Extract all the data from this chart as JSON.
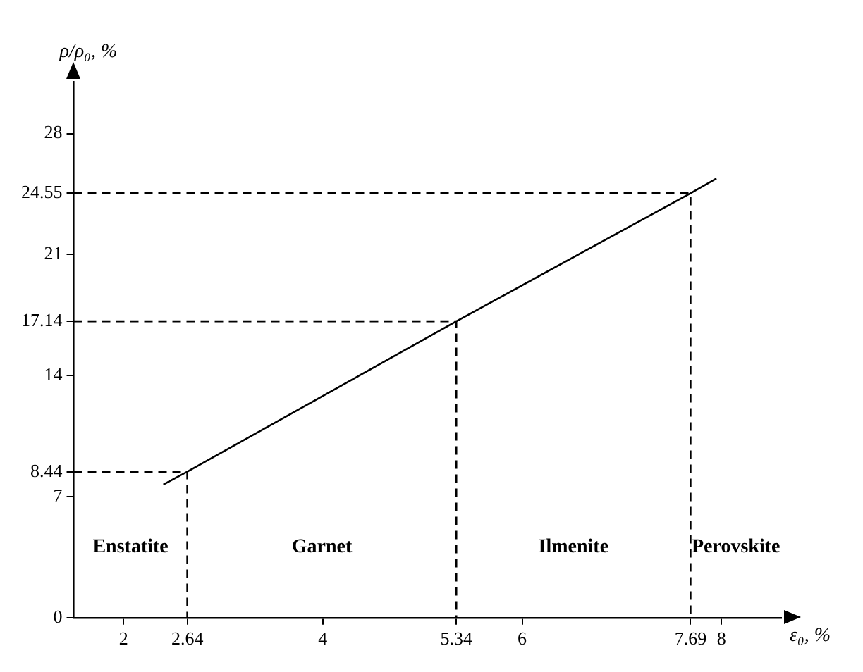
{
  "chart_data": {
    "type": "line",
    "xlabel": "ε₀, %",
    "ylabel": "ρ/ρ₀, %",
    "xlim": [
      1.5,
      8.6
    ],
    "ylim": [
      0,
      31
    ],
    "xticks": [
      2,
      2.64,
      4,
      5.34,
      6,
      7.69,
      8
    ],
    "yticks": [
      0,
      7,
      8.44,
      14,
      17.14,
      21,
      24.55,
      28
    ],
    "grid": false,
    "legend": false,
    "marker": "none",
    "series": [
      {
        "color": "#000000",
        "line_style": "solid",
        "x": [
          2.4,
          2.64,
          5.34,
          7.69,
          7.95
        ],
        "values": [
          7.7,
          8.44,
          17.14,
          24.55,
          25.4
        ]
      },
      {
        "color": "#000000",
        "line_style": "dashed",
        "x": [
          1.5,
          2.64,
          2.64
        ],
        "values": [
          8.44,
          8.44,
          0
        ]
      },
      {
        "color": "#000000",
        "line_style": "dashed",
        "x": [
          1.5,
          5.34,
          5.34
        ],
        "values": [
          17.14,
          17.14,
          0
        ]
      },
      {
        "color": "#000000",
        "line_style": "dashed",
        "x": [
          1.5,
          7.69,
          7.69
        ],
        "values": [
          24.55,
          24.55,
          0
        ]
      }
    ],
    "annotations": [
      "Enstatite",
      "Garnet",
      "Ilmenite",
      "Perovskite"
    ]
  }
}
